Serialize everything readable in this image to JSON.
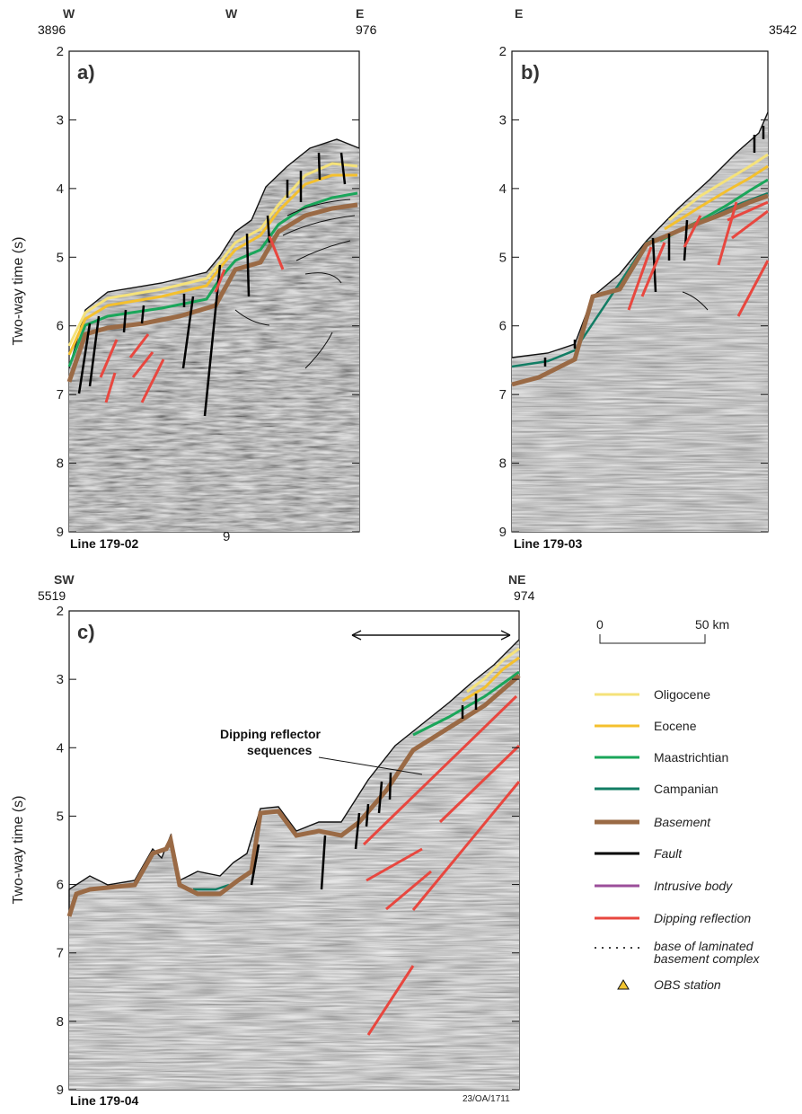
{
  "axis": {
    "ylabel": "Two-way time (s)",
    "ticks_ab": [
      "2",
      "3",
      "4",
      "5",
      "6",
      "7",
      "8",
      "9"
    ],
    "ticks_c": [
      "2",
      "3",
      "4",
      "5",
      "6",
      "7",
      "8",
      "9"
    ]
  },
  "panel_a": {
    "label": "a)",
    "line": "Line 179-02",
    "left_dir": "W",
    "mid_dir": "W",
    "right_dir": "E",
    "left_shot": "3896",
    "right_shot": "976",
    "stray": "9"
  },
  "panel_b": {
    "label": "b)",
    "line": "Line 179-03",
    "left_dir": "E",
    "right_shot": "3542"
  },
  "panel_c": {
    "label": "c)",
    "line": "Line 179-04",
    "left_dir": "SW",
    "right_dir": "NE",
    "left_shot": "5519",
    "right_shot": "974",
    "annotation_1": "Dipping reflector",
    "annotation_2": "sequences",
    "figure_id": "23/OA/1711"
  },
  "scale": {
    "start": "0",
    "end": "50 km"
  },
  "legend": [
    {
      "label": "Oligocene",
      "color": "#f5e27a",
      "style": "line",
      "italic": false
    },
    {
      "label": "Eocene",
      "color": "#f4c02e",
      "style": "line",
      "italic": false
    },
    {
      "label": "Maastrichtian",
      "color": "#1aa65a",
      "style": "line",
      "italic": false
    },
    {
      "label": "Campanian",
      "color": "#127d64",
      "style": "line",
      "italic": false
    },
    {
      "label": "Basement",
      "color": "#9a6a45",
      "style": "thick",
      "italic": true
    },
    {
      "label": "Fault",
      "color": "#000000",
      "style": "line",
      "italic": true
    },
    {
      "label": "Intrusive body",
      "color": "#9b4f9a",
      "style": "line",
      "italic": true
    },
    {
      "label": "Dipping reflection",
      "color": "#e8473f",
      "style": "line",
      "italic": true
    },
    {
      "label": "base of laminated",
      "label2": "basement complex",
      "color": "#000000",
      "style": "dotted",
      "italic": true
    },
    {
      "label": "OBS station",
      "color": "#f3c531",
      "style": "triangle",
      "italic": true
    }
  ]
}
